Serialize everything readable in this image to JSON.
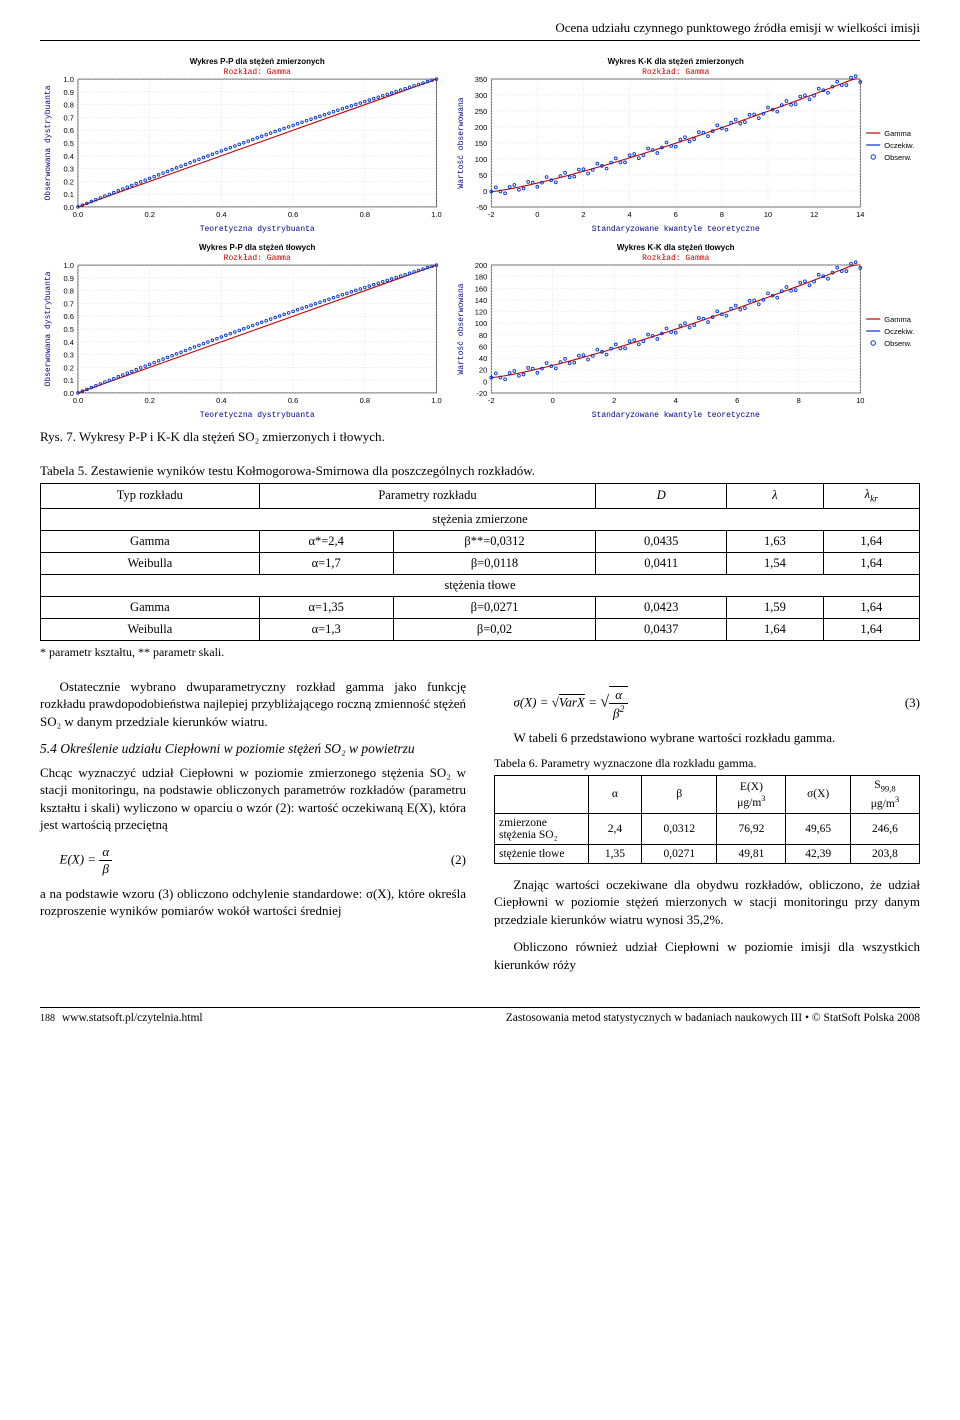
{
  "header": "Ocena udziału czynnego punktowego źródła emisji w wielkości imisji",
  "charts": {
    "pp_measured": {
      "title": "Wykres P-P dla stężeń zmierzonych",
      "subtitle": "Rozkład: Gamma",
      "xlabel": "Teoretyczna dystrybuanta",
      "ylabel": "Obserwowana dystrybuanta",
      "xlim": [
        0.0,
        1.0
      ],
      "xtick_step": 0.2,
      "ylim": [
        0.0,
        1.0
      ],
      "ytick_step": 0.1,
      "line_color": "#c00000",
      "marker_color": "#0033cc",
      "grid_color": "#c0c0c0",
      "legend": null
    },
    "kk_measured": {
      "title": "Wykres K-K dla stężeń zmierzonych",
      "subtitle": "Rozkład: Gamma",
      "xlabel": "Standaryzowane kwantyle teoretyczne",
      "ylabel": "Wartość obserwowana",
      "xlim": [
        -2,
        14
      ],
      "xtick_step": 2,
      "ylim": [
        -50,
        350
      ],
      "ytick_step": 50,
      "line_color": "#c00000",
      "marker_color": "#0033cc",
      "grid_color": "#c0c0c0",
      "legend": [
        "Gamma",
        "Oczekiw.",
        "Obserw."
      ]
    },
    "pp_background": {
      "title": "Wykres P-P dla stężeń tłowych",
      "subtitle": "Rozkład: Gamma",
      "xlabel": "Teoretyczna dystrybuanta",
      "ylabel": "Obserwowana dystrybuanta",
      "xlim": [
        0.0,
        1.0
      ],
      "xtick_step": 0.2,
      "ylim": [
        0.0,
        1.0
      ],
      "ytick_step": 0.1,
      "line_color": "#c00000",
      "marker_color": "#0033cc",
      "grid_color": "#c0c0c0",
      "legend": null
    },
    "kk_background": {
      "title": "Wykres K-K dla stężeń tłowych",
      "subtitle": "Rozkład: Gamma",
      "xlabel": "Standaryzowane kwantyle teoretyczne",
      "ylabel": "Wartość obserwowana",
      "xlim": [
        -2,
        10
      ],
      "xtick_step": 2,
      "ylim": [
        -20,
        200
      ],
      "ytick_step": 20,
      "line_color": "#c00000",
      "marker_color": "#0033cc",
      "grid_color": "#c0c0c0",
      "legend": [
        "Gamma",
        "Oczekiw.",
        "Obserw."
      ]
    }
  },
  "fig7_caption": "Rys. 7. Wykresy P-P i K-K dla stężeń SO₂ zmierzonych i tłowych.",
  "table5": {
    "caption": "Tabela 5. Zestawienie wyników testu Kołmogorowa-Smirnowa dla poszczególnych rozkładów.",
    "columns": [
      "Typ rozkładu",
      "Parametry rozkładu",
      "",
      "D",
      "λ",
      "λkr"
    ],
    "section1": "stężenia zmierzone",
    "rows1": [
      [
        "Gamma",
        "α*=2,4",
        "β**=0,0312",
        "0,0435",
        "1,63",
        "1,64"
      ],
      [
        "Weibulla",
        "α=1,7",
        "β=0,0118",
        "0,0411",
        "1,54",
        "1,64"
      ]
    ],
    "section2": "stężenia tłowe",
    "rows2": [
      [
        "Gamma",
        "α=1,35",
        "β=0,0271",
        "0,0423",
        "1,59",
        "1,64"
      ],
      [
        "Weibulla",
        "α=1,3",
        "β=0,02",
        "0,0437",
        "1,64",
        "1,64"
      ]
    ],
    "footnote": "* parametr kształtu, ** parametr skali."
  },
  "left_col": {
    "p1": "Ostatecznie wybrano dwuparametryczny rozkład gamma jako funkcję rozkładu prawdopodobieństwa najlepiej przybliżającego roczną zmienność stężeń SO₂ w danym przedziale kierunków wiatru.",
    "p2_head": "5.4 Określenie udziału Ciepłowni w poziomie stężeń SO₂ w powietrzu",
    "p2": "Chcąc wyznaczyć udział Ciepłowni w poziomie zmierzonego stężenia SO₂ w stacji monitoringu, na podstawie obliczonych parametrów rozkładów (parametru kształtu i skali) wyliczono w oparciu o wzór (2): wartość oczekiwaną E(X), która jest wartością przeciętną",
    "eq2_label": "(2)",
    "p3": "a na podstawie wzoru (3) obliczono odchylenie standardowe: σ(X), które określa rozproszenie wyników pomiarów wokół wartości średniej"
  },
  "right_col": {
    "eq3_label": "(3)",
    "p1": "W tabeli 6 przedstawiono wybrane wartości rozkładu gamma.",
    "tbl6_caption": "Tabela 6. Parametry wyznaczone dla rozkładu gamma.",
    "tbl6": {
      "columns": [
        "",
        "α",
        "β",
        "E(X) μg/m³",
        "σ(X)",
        "S99,8 μg/m³"
      ],
      "rows": [
        [
          "zmierzone stężenia SO₂",
          "2,4",
          "0,0312",
          "76,92",
          "49,65",
          "246,6"
        ],
        [
          "stężenie tłowe",
          "1,35",
          "0,0271",
          "49,81",
          "42,39",
          "203,8"
        ]
      ]
    },
    "p2": "Znając wartości oczekiwane dla obydwu rozkładów, obliczono, że udział Ciepłowni w poziomie stężeń mierzonych w stacji monitoringu przy danym przedziale kierunków wiatru wynosi 35,2%.",
    "p3": "Obliczono również udział Ciepłowni w poziomie imisji dla wszystkich kierunków róży"
  },
  "footer": {
    "page": "188",
    "left": "www.statsoft.pl/czytelnia.html",
    "right": "Zastosowania metod statystycznych w badaniach naukowych III • © StatSoft Polska 2008"
  }
}
